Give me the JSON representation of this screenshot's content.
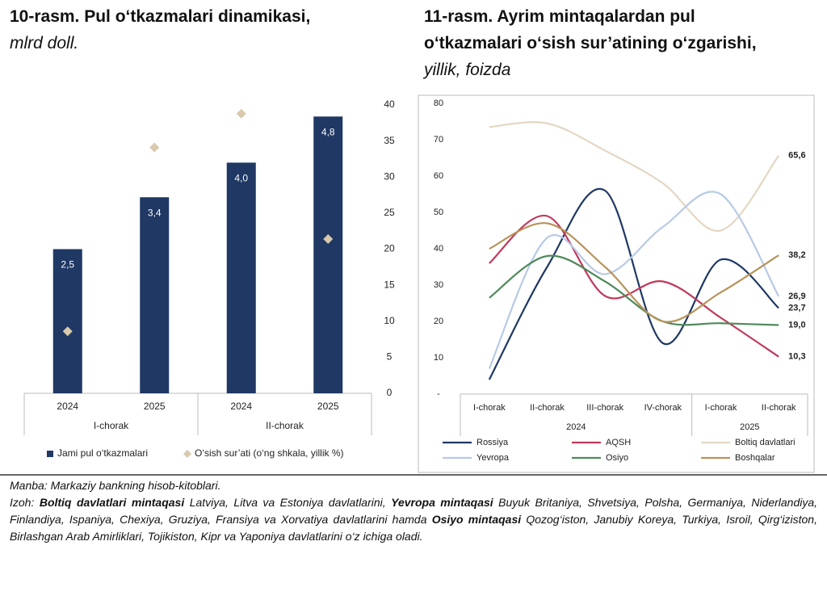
{
  "chart_data": [
    {
      "type": "bar",
      "title": "10-rasm. Pul o‘tkazmalari dinamikasi,",
      "subtitle": "mlrd doll.",
      "groups": [
        {
          "label": "I-chorak",
          "categories": [
            "2024",
            "2025"
          ]
        },
        {
          "label": "II-chorak",
          "categories": [
            "2024",
            "2025"
          ]
        }
      ],
      "series": [
        {
          "name": "Jami pul o‘tkazmalari",
          "color": "#1f3864",
          "values": [
            2.5,
            3.4,
            4.0,
            4.8
          ],
          "value_labels": [
            "2,5",
            "3,4",
            "4,0",
            "4,8"
          ]
        },
        {
          "name": "O‘sish sur’ati (o‘ng shkala, yillik %)",
          "color": "#d9c9ad",
          "marker": "diamond",
          "axis": "y2",
          "values": [
            8.6,
            34.1,
            38.8,
            21.4
          ]
        }
      ],
      "ylim": [
        0,
        5
      ],
      "y2lim": [
        0,
        40
      ],
      "y2ticks": [
        0,
        5,
        10,
        15,
        20,
        25,
        30,
        35,
        40
      ],
      "grid": false
    },
    {
      "type": "line",
      "title": "11-rasm. Ayrim mintaqalardan pul o‘tkazmalari o‘sish sur’atining o‘zgarishi,",
      "subtitle": "yillik, foizda",
      "groups": [
        {
          "label": "2024",
          "categories": [
            "I-chorak",
            "II-chorak",
            "III-chorak",
            "IV-chorak"
          ]
        },
        {
          "label": "2025",
          "categories": [
            "I-chorak",
            "II-chorak"
          ]
        }
      ],
      "series": [
        {
          "name": "Rossiya",
          "color": "#1f3864",
          "values": [
            4,
            35,
            56,
            14,
            37,
            23.7
          ],
          "value_labels": [
            null,
            null,
            null,
            null,
            null,
            "23,7"
          ]
        },
        {
          "name": "AQSH",
          "color": "#c0395b",
          "values": [
            36,
            49,
            27,
            31,
            21,
            10.3
          ],
          "value_labels": [
            null,
            null,
            null,
            null,
            null,
            "10,3"
          ]
        },
        {
          "name": "Boltiq davlatlari",
          "color": "#e3d7c3",
          "values": [
            73.5,
            74.5,
            67,
            58,
            45,
            65.6
          ],
          "value_labels": [
            null,
            null,
            null,
            null,
            null,
            "65,6"
          ]
        },
        {
          "name": "Yevropa",
          "color": "#b7cae6",
          "values": [
            7,
            43,
            33,
            46,
            55,
            26.9
          ],
          "value_labels": [
            null,
            null,
            null,
            null,
            null,
            "26,9"
          ]
        },
        {
          "name": "Osiyo",
          "color": "#4f8a5b",
          "values": [
            26.5,
            38,
            31,
            20,
            19.5,
            19.0
          ],
          "value_labels": [
            null,
            null,
            null,
            null,
            null,
            "19,0"
          ]
        },
        {
          "name": "Boshqalar",
          "color": "#b8935a",
          "values": [
            40,
            47,
            35,
            20,
            28,
            38.2
          ],
          "value_labels": [
            null,
            null,
            null,
            null,
            null,
            "38,2"
          ]
        }
      ],
      "ylim": [
        0,
        80
      ],
      "yticks": [
        {
          "value": 0,
          "label": "-"
        },
        10,
        20,
        30,
        40,
        50,
        60,
        70,
        80
      ],
      "grid": false
    }
  ],
  "notes": {
    "source": "Manba: Markaziy bankning hisob-kitoblari.",
    "parts": [
      {
        "text": "Izoh:"
      },
      {
        "text": "Boltiq davlatlari mintaqasi",
        "bold": true
      },
      {
        "text": "Latviya, Litva va Estoniya davlatlarini,"
      },
      {
        "text": "Yevropa mintaqasi",
        "bold": true
      },
      {
        "text": "Buyuk Britaniya, Shvetsiya, Polsha, Germaniya, Niderlandiya, Finlandiya, Ispaniya, Chexiya, Gruziya, Fransiya va Xorvatiya davlatlarini hamda"
      },
      {
        "text": "Osiyo mintaqasi",
        "bold": true
      },
      {
        "text": "Qozog‘iston, Janubiy Koreya, Turkiya, Isroil, Qirg‘iziston, Birlashgan Arab Amirliklari, Tojikiston, Kipr va Yaponiya davlatlarini o‘z ichiga oladi."
      }
    ]
  }
}
